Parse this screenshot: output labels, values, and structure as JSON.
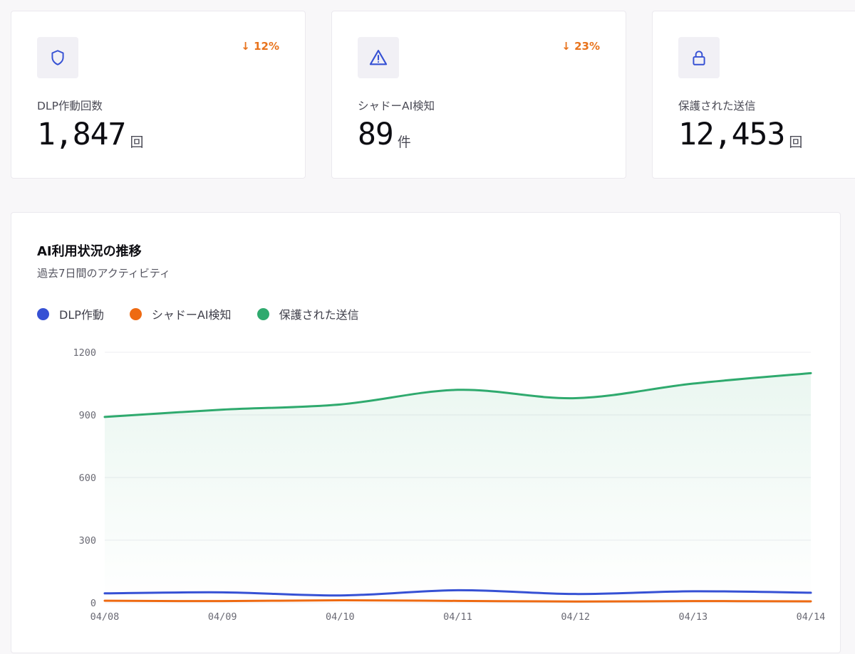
{
  "colors": {
    "dlp": "#3651d4",
    "shadow_ai": "#ee6a12",
    "protected": "#2faa6e",
    "trend_down": "#e8731c",
    "icon": "#3651d4"
  },
  "stats": [
    {
      "icon": "shield-icon",
      "trend": "↓ 12%",
      "label": "DLP作動回数",
      "value": "1,847",
      "unit": "回"
    },
    {
      "icon": "warning-icon",
      "trend": "↓ 23%",
      "label": "シャドーAI検知",
      "value": "89",
      "unit": "件"
    },
    {
      "icon": "lock-icon",
      "trend": "",
      "label": "保護された送信",
      "value": "12,453",
      "unit": "回"
    }
  ],
  "chart": {
    "title": "AI利用状況の推移",
    "subtitle": "過去7日間のアクティビティ"
  },
  "chart_data": {
    "type": "line",
    "x": [
      "04/08",
      "04/09",
      "04/10",
      "04/11",
      "04/12",
      "04/13",
      "04/14"
    ],
    "y_ticks": [
      0,
      300,
      600,
      900,
      1200
    ],
    "ylim": [
      0,
      1200
    ],
    "grid": true,
    "legend_position": "top-left",
    "series": [
      {
        "name": "DLP作動",
        "color": "#3651d4",
        "values": [
          45,
          50,
          35,
          60,
          42,
          55,
          48
        ]
      },
      {
        "name": "シャドーAI検知",
        "color": "#ee6a12",
        "values": [
          10,
          8,
          12,
          9,
          6,
          8,
          7
        ]
      },
      {
        "name": "保護された送信",
        "color": "#2faa6e",
        "values": [
          890,
          925,
          950,
          1020,
          980,
          1050,
          1100
        ],
        "fill": true
      }
    ]
  }
}
